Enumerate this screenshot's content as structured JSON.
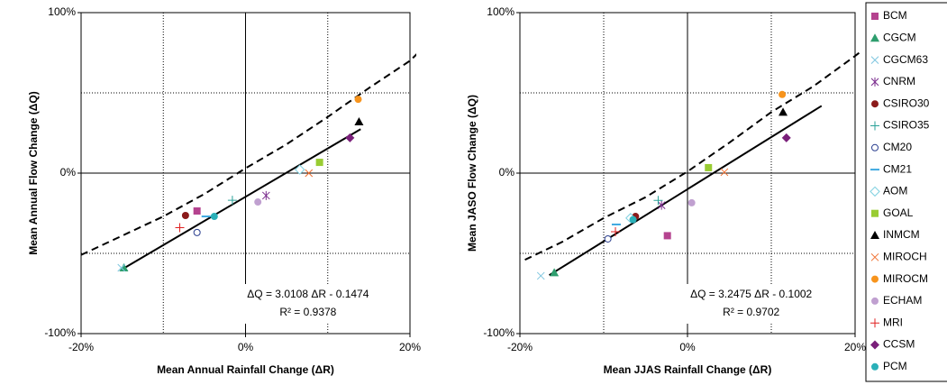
{
  "chart_data": [
    {
      "type": "scatter",
      "xlabel": "Mean Annual Rainfall Change (ΔR)",
      "ylabel": "Mean Annual Flow Change (ΔQ)",
      "xlim": [
        -20,
        20
      ],
      "ylim": [
        -100,
        100
      ],
      "xticks": [
        {
          "value": -20,
          "label": "-20%"
        },
        {
          "value": 0,
          "label": "0%"
        },
        {
          "value": 20,
          "label": "20%"
        }
      ],
      "yticks": [
        {
          "value": -100,
          "label": "-100%"
        },
        {
          "value": 0,
          "label": "0%"
        },
        {
          "value": 100,
          "label": "100%"
        }
      ],
      "xgrid": [
        -10,
        10
      ],
      "ygrid": [
        -50,
        50
      ],
      "equation": "ΔQ = 3.0108 ΔR - 0.1474",
      "r_squared": "R² = 0.9378",
      "trendline": {
        "color": "#000000",
        "x": [
          -15,
          14
        ],
        "values": [
          -59.9,
          27.4
        ]
      },
      "curve": {
        "color": "#000000",
        "x": [
          -20,
          -15,
          -10,
          -5,
          0,
          5,
          10,
          15,
          20,
          21
        ],
        "values": [
          -51,
          -39,
          -27,
          -13,
          3,
          18,
          35,
          53,
          70,
          75
        ]
      },
      "series": [
        {
          "name": "BCM",
          "marker": "square",
          "color": "#b5438f",
          "x": [
            -5.9
          ],
          "values": [
            -23.6
          ]
        },
        {
          "name": "CGCM",
          "marker": "triangle",
          "color": "#2e9e6e",
          "x": [
            -14.8
          ],
          "values": [
            -59
          ]
        },
        {
          "name": "CGCM63",
          "marker": "x",
          "color": "#7fc6e0",
          "x": [
            -15.1
          ],
          "values": [
            -59
          ]
        },
        {
          "name": "CNRM",
          "marker": "star",
          "color": "#7b2d8e",
          "x": [
            2.5
          ],
          "values": [
            -14
          ]
        },
        {
          "name": "CSIRO30",
          "marker": "circle",
          "color": "#8b1a1a",
          "x": [
            -7.3
          ],
          "values": [
            -26.4
          ]
        },
        {
          "name": "CSIRO35",
          "marker": "plus",
          "color": "#2aa198",
          "x": [
            -1.6
          ],
          "values": [
            -16.9
          ]
        },
        {
          "name": "CM20",
          "marker": "open-circle",
          "color": "#2b3f8f",
          "x": [
            -5.9
          ],
          "values": [
            -37
          ]
        },
        {
          "name": "CM21",
          "marker": "dash",
          "color": "#3fa9e0",
          "x": [
            -4.8
          ],
          "values": [
            -27
          ]
        },
        {
          "name": "AOM",
          "marker": "open-diamond",
          "color": "#7fd0e0",
          "x": [
            6.6
          ],
          "values": [
            2.2
          ]
        },
        {
          "name": "GOAL",
          "marker": "square",
          "color": "#99cc33",
          "x": [
            9.0
          ],
          "values": [
            6.7
          ]
        },
        {
          "name": "INMCM",
          "marker": "triangle",
          "color": "#000000",
          "x": [
            13.8
          ],
          "values": [
            32
          ]
        },
        {
          "name": "MIROCH",
          "marker": "x",
          "color": "#f07030",
          "x": [
            7.7
          ],
          "values": [
            0
          ]
        },
        {
          "name": "MIROCM",
          "marker": "circle",
          "color": "#f7941d",
          "x": [
            13.7
          ],
          "values": [
            46
          ]
        },
        {
          "name": "ECHAM",
          "marker": "circle",
          "color": "#c0a0d0",
          "x": [
            1.5
          ],
          "values": [
            -18
          ]
        },
        {
          "name": "MRI",
          "marker": "plus",
          "color": "#e02020",
          "x": [
            -8.0
          ],
          "values": [
            -34
          ]
        },
        {
          "name": "CCSM",
          "marker": "diamond",
          "color": "#7a1f7a",
          "x": [
            12.7
          ],
          "values": [
            22
          ]
        },
        {
          "name": "PCM",
          "marker": "circle",
          "color": "#2ab0b8",
          "x": [
            -3.8
          ],
          "values": [
            -27
          ]
        }
      ]
    },
    {
      "type": "scatter",
      "xlabel": "Mean JJAS Rainfall Change (ΔR)",
      "ylabel": "Mean JASO Flow Change (ΔQ)",
      "xlim": [
        -20,
        20
      ],
      "ylim": [
        -100,
        100
      ],
      "xticks": [
        {
          "value": -20,
          "label": "-20%"
        },
        {
          "value": 0,
          "label": "0%"
        },
        {
          "value": 20,
          "label": "20%"
        }
      ],
      "yticks": [
        {
          "value": -100,
          "label": "-100%"
        },
        {
          "value": 0,
          "label": "0%"
        },
        {
          "value": 100,
          "label": "100%"
        }
      ],
      "xgrid": [
        -10,
        10
      ],
      "ygrid": [
        -50,
        50
      ],
      "equation": "ΔQ = 3.2475 ΔR - 0.1002",
      "r_squared": "R² = 0.9702",
      "trendline": {
        "color": "#000000",
        "x": [
          -16.5,
          16
        ],
        "values": [
          -63.6,
          41.9
        ]
      },
      "curve": {
        "color": "#000000",
        "x": [
          -19.4,
          -15,
          -10,
          -5,
          0,
          5,
          10,
          15,
          20,
          21
        ],
        "values": [
          -54,
          -43,
          -28,
          -15,
          1,
          19,
          38,
          54,
          73,
          77
        ]
      },
      "series": [
        {
          "marker": "square",
          "color": "#b5438f",
          "x": [
            -2.4
          ],
          "values": [
            -39
          ]
        },
        {
          "marker": "triangle",
          "color": "#2e9e6e",
          "x": [
            -15.9
          ],
          "values": [
            -62
          ]
        },
        {
          "marker": "x",
          "color": "#7fc6e0",
          "x": [
            -17.5
          ],
          "values": [
            -64
          ]
        },
        {
          "marker": "star",
          "color": "#7b2d8e",
          "x": [
            -3.1
          ],
          "values": [
            -20
          ]
        },
        {
          "marker": "circle",
          "color": "#8b1a1a",
          "x": [
            -6.2
          ],
          "values": [
            -27
          ]
        },
        {
          "marker": "plus",
          "color": "#2aa198",
          "x": [
            -3.5
          ],
          "values": [
            -17
          ]
        },
        {
          "marker": "open-circle",
          "color": "#2b3f8f",
          "x": [
            -9.5
          ],
          "values": [
            -41
          ]
        },
        {
          "marker": "dash",
          "color": "#3fa9e0",
          "x": [
            -8.5
          ],
          "values": [
            -32
          ]
        },
        {
          "marker": "open-diamond",
          "color": "#7fd0e0",
          "x": [
            -6.8
          ],
          "values": [
            -28
          ]
        },
        {
          "marker": "square",
          "color": "#99cc33",
          "x": [
            2.5
          ],
          "values": [
            3.4
          ]
        },
        {
          "marker": "triangle",
          "color": "#000000",
          "x": [
            11.4
          ],
          "values": [
            38
          ]
        },
        {
          "marker": "x",
          "color": "#f07030",
          "x": [
            4.4
          ],
          "values": [
            0.6
          ]
        },
        {
          "marker": "circle",
          "color": "#f7941d",
          "x": [
            11.3
          ],
          "values": [
            49
          ]
        },
        {
          "marker": "circle",
          "color": "#c0a0d0",
          "x": [
            0.5
          ],
          "values": [
            -18.5
          ]
        },
        {
          "marker": "plus",
          "color": "#e02020",
          "x": [
            -8.6
          ],
          "values": [
            -36.5
          ]
        },
        {
          "marker": "diamond",
          "color": "#7a1f7a",
          "x": [
            11.8
          ],
          "values": [
            22
          ]
        },
        {
          "marker": "circle",
          "color": "#2ab0b8",
          "x": [
            -6.5
          ],
          "values": [
            -29
          ]
        }
      ]
    }
  ]
}
